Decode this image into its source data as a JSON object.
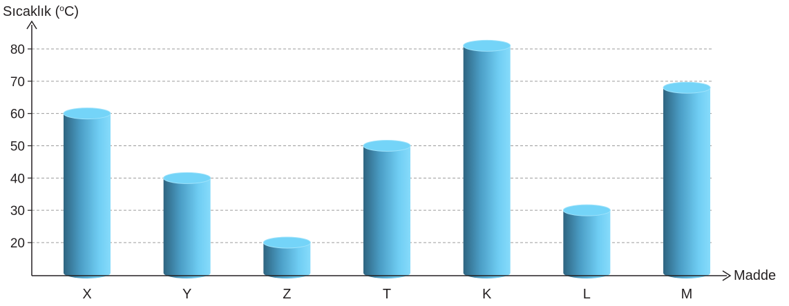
{
  "chart_data": {
    "type": "bar",
    "style": "3d-cylinder",
    "ylabel": "Sıcaklık (°C)",
    "ylabel_prefix": "Sıcaklık (",
    "ylabel_degree": "o",
    "ylabel_suffix": "C)",
    "xlabel": "Madde",
    "categories": [
      "X",
      "Y",
      "Z",
      "T",
      "K",
      "L",
      "M"
    ],
    "values": [
      60,
      40,
      20,
      50,
      81,
      30,
      68
    ],
    "yticks": [
      20,
      30,
      40,
      50,
      60,
      70,
      80
    ],
    "ylim": [
      10,
      88
    ],
    "grid": "horizontal dashed",
    "colors": {
      "bar_light": "#7fd8fa",
      "bar_mid": "#4fb4de",
      "bar_dark": "#2e6480",
      "bar_top": "#74d4f8",
      "grid": "#9a9a9a",
      "axis": "#231f20"
    }
  }
}
